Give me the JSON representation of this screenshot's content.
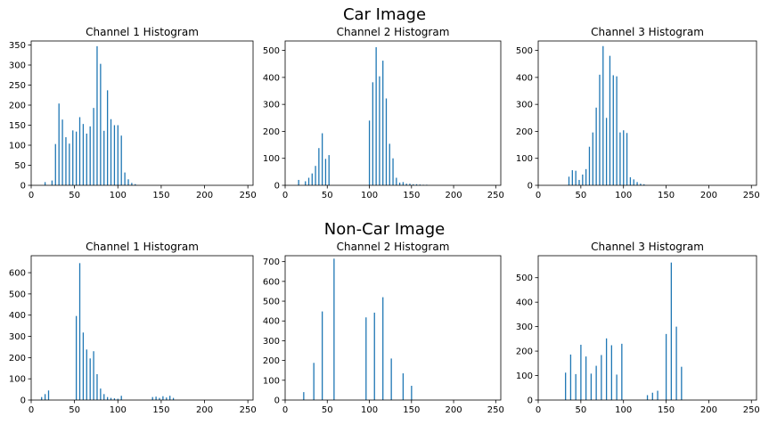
{
  "figure": {
    "row_titles": [
      "Car Image",
      "Non-Car Image"
    ]
  },
  "colors": {
    "bar": "#1f77b4",
    "axis": "#000000"
  },
  "chart_data": [
    {
      "type": "bar",
      "title": "Channel 1 Histogram",
      "xlim": [
        0,
        256
      ],
      "ylim": [
        0,
        360
      ],
      "xticks": [
        0,
        50,
        100,
        150,
        200,
        250
      ],
      "yticks": [
        0,
        50,
        100,
        150,
        200,
        250,
        300,
        350
      ],
      "x": [
        16,
        24,
        28,
        32,
        36,
        40,
        44,
        48,
        52,
        56,
        60,
        64,
        68,
        72,
        76,
        80,
        84,
        88,
        92,
        96,
        100,
        104,
        108,
        112,
        116,
        120,
        164,
        168,
        172,
        176
      ],
      "values": [
        8,
        12,
        103,
        204,
        164,
        120,
        104,
        137,
        134,
        170,
        153,
        129,
        147,
        193,
        347,
        303,
        136,
        237,
        165,
        150,
        150,
        124,
        32,
        15,
        6,
        3,
        0,
        0,
        0,
        0
      ]
    },
    {
      "type": "bar",
      "title": "Channel 2 Histogram",
      "xlim": [
        0,
        256
      ],
      "ylim": [
        0,
        535
      ],
      "xticks": [
        0,
        50,
        100,
        150,
        200,
        250
      ],
      "yticks": [
        0,
        100,
        200,
        300,
        400,
        500
      ],
      "x": [
        16,
        24,
        28,
        32,
        36,
        40,
        44,
        48,
        52,
        100,
        104,
        108,
        112,
        116,
        120,
        124,
        128,
        132,
        136,
        140,
        144,
        148,
        152,
        156,
        160,
        164,
        168
      ],
      "values": [
        20,
        15,
        28,
        44,
        72,
        138,
        193,
        98,
        112,
        240,
        382,
        512,
        404,
        462,
        322,
        154,
        100,
        28,
        10,
        12,
        6,
        6,
        4,
        4,
        3,
        2,
        2
      ]
    },
    {
      "type": "bar",
      "title": "Channel 3 Histogram",
      "xlim": [
        0,
        256
      ],
      "ylim": [
        0,
        535
      ],
      "xticks": [
        0,
        50,
        100,
        150,
        200,
        250
      ],
      "yticks": [
        0,
        100,
        200,
        300,
        400,
        500
      ],
      "x": [
        36,
        40,
        44,
        48,
        52,
        56,
        60,
        64,
        68,
        72,
        76,
        80,
        84,
        88,
        92,
        96,
        100,
        104,
        108,
        112,
        116,
        120,
        124,
        128,
        132,
        136
      ],
      "values": [
        32,
        56,
        54,
        20,
        40,
        60,
        143,
        196,
        288,
        410,
        516,
        250,
        480,
        408,
        404,
        196,
        204,
        194,
        30,
        22,
        12,
        6,
        4,
        0,
        0,
        0
      ]
    },
    {
      "type": "bar",
      "title": "Channel 1 Histogram",
      "xlim": [
        0,
        256
      ],
      "ylim": [
        0,
        680
      ],
      "xticks": [
        0,
        50,
        100,
        150,
        200,
        250
      ],
      "yticks": [
        0,
        100,
        200,
        300,
        400,
        500,
        600
      ],
      "x": [
        12,
        16,
        20,
        52,
        56,
        60,
        64,
        68,
        72,
        76,
        80,
        84,
        88,
        92,
        96,
        100,
        104,
        140,
        144,
        148,
        152,
        156,
        160,
        164,
        168
      ],
      "values": [
        14,
        28,
        45,
        396,
        645,
        318,
        238,
        196,
        230,
        122,
        54,
        28,
        14,
        10,
        8,
        6,
        20,
        14,
        16,
        10,
        18,
        12,
        20,
        10,
        0
      ]
    },
    {
      "type": "bar",
      "title": "Channel 2 Histogram",
      "xlim": [
        0,
        256
      ],
      "ylim": [
        0,
        730
      ],
      "xticks": [
        0,
        50,
        100,
        150,
        200,
        250
      ],
      "yticks": [
        0,
        100,
        200,
        300,
        400,
        500,
        600,
        700
      ],
      "x": [
        22,
        34,
        44,
        58,
        96,
        106,
        116,
        126,
        140,
        150
      ],
      "values": [
        40,
        188,
        448,
        715,
        418,
        442,
        520,
        210,
        135,
        72
      ]
    },
    {
      "type": "bar",
      "title": "Channel 3 Histogram",
      "xlim": [
        0,
        256
      ],
      "ylim": [
        0,
        590
      ],
      "xticks": [
        0,
        50,
        100,
        150,
        200,
        250
      ],
      "yticks": [
        0,
        100,
        200,
        300,
        400,
        500
      ],
      "x": [
        32,
        38,
        44,
        50,
        56,
        62,
        68,
        74,
        80,
        86,
        92,
        98,
        128,
        134,
        140,
        150,
        156,
        162,
        168
      ],
      "values": [
        112,
        186,
        106,
        226,
        178,
        108,
        140,
        184,
        252,
        224,
        104,
        230,
        20,
        30,
        38,
        270,
        562,
        300,
        136
      ]
    }
  ]
}
